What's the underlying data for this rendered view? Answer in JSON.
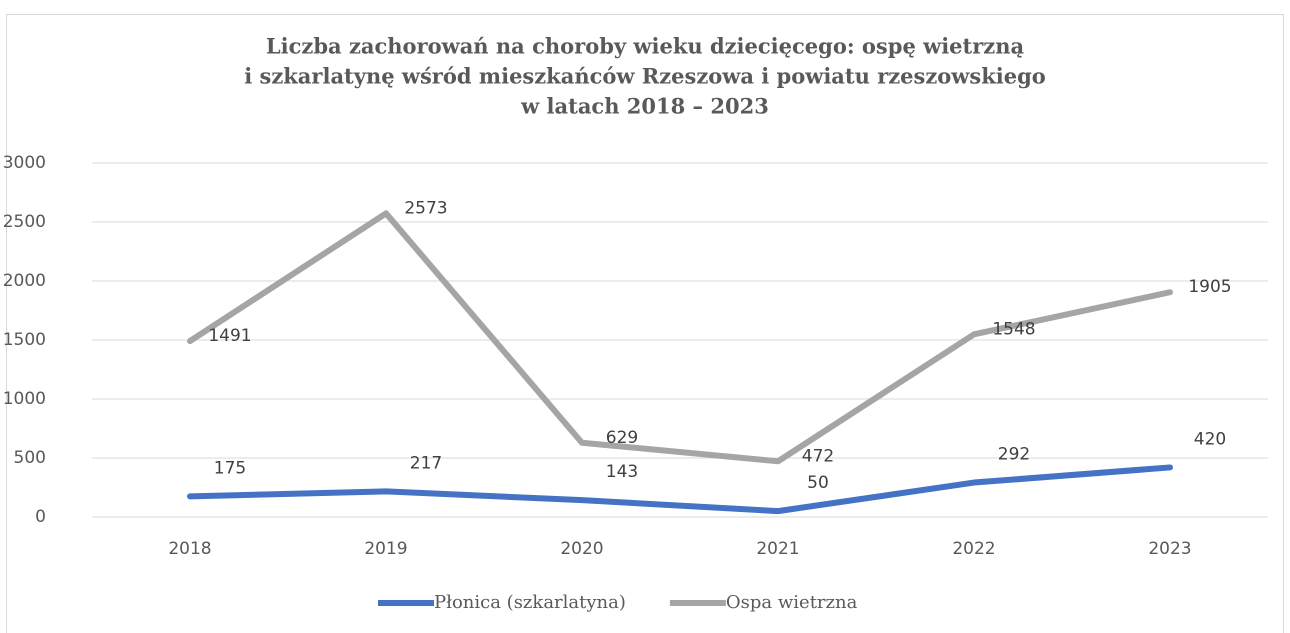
{
  "chart_data": {
    "type": "line",
    "title": [
      "Liczba zachorowań na choroby wieku dziecięcego: ospę wietrzną",
      "i szkarlatynę wśród mieszkańców Rzeszowa i powiatu rzeszowskiego",
      "w latach 2018 – 2023"
    ],
    "categories": [
      "2018",
      "2019",
      "2020",
      "2021",
      "2022",
      "2023"
    ],
    "series": [
      {
        "name": "Płonica (szkarlatyna)",
        "color": "#4472c4",
        "values": [
          175,
          217,
          143,
          50,
          292,
          420
        ]
      },
      {
        "name": "Ospa wietrzna",
        "color": "#a5a5a5",
        "values": [
          1491,
          2573,
          629,
          472,
          1548,
          1905
        ]
      }
    ],
    "ylim": [
      0,
      3000
    ],
    "yticks": [
      0,
      500,
      1000,
      1500,
      2000,
      2500,
      3000
    ],
    "grid": true,
    "legend": "bottom"
  }
}
